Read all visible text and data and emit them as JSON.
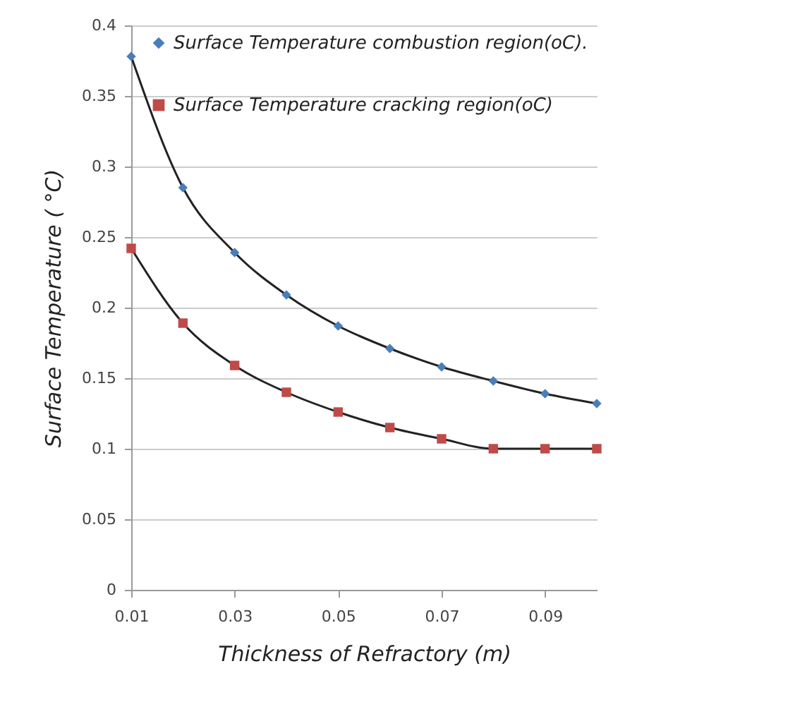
{
  "chart_data": {
    "type": "line",
    "xlabel": "Thickness of Refractory (m)",
    "ylabel": "Surface Temperature ( °C)",
    "x": [
      0.01,
      0.02,
      0.03,
      0.04,
      0.05,
      0.06,
      0.07,
      0.08,
      0.09,
      0.1
    ],
    "series": [
      {
        "name": "Surface Temperature combustion region(oC).",
        "color": "#4a7ebb",
        "marker": "diamond",
        "values": [
          0.378,
          0.285,
          0.239,
          0.209,
          0.187,
          0.171,
          0.158,
          0.148,
          0.139,
          0.132
        ]
      },
      {
        "name": "Surface Temperature cracking  region(oC)",
        "color": "#be4b48",
        "marker": "square",
        "values": [
          0.242,
          0.189,
          0.159,
          0.14,
          0.126,
          0.115,
          0.107,
          0.1,
          0.1,
          0.1
        ]
      }
    ],
    "xlim": [
      0.01,
      0.1
    ],
    "xticks": [
      0.01,
      0.03,
      0.05,
      0.07,
      0.09
    ],
    "ylim": [
      0,
      0.4
    ],
    "yticks": [
      0,
      0.05,
      0.1,
      0.15,
      0.2,
      0.25,
      0.3,
      0.35,
      0.4
    ],
    "grid": "y",
    "legend": "top right",
    "line_style": "solid"
  }
}
